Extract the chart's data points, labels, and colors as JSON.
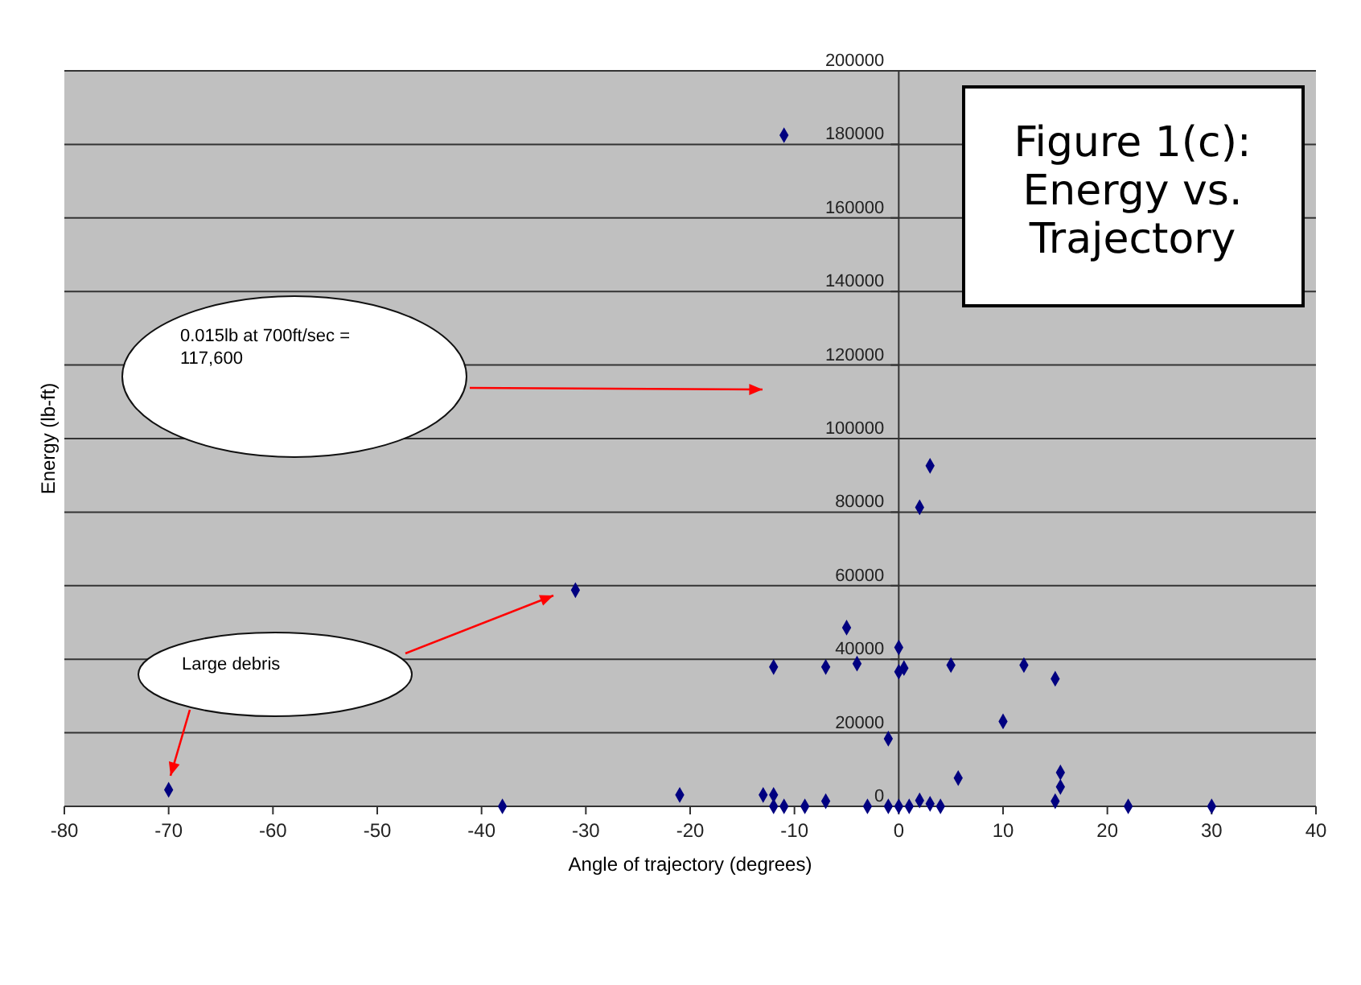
{
  "chart_data": {
    "type": "scatter",
    "title": "Figure 1(c): Energy vs. Trajectory",
    "xlabel": "Angle of trajectory (degrees)",
    "ylabel": "Energy (lb-ft)",
    "xlim": [
      -80,
      40
    ],
    "xticks": [
      -80,
      -70,
      -60,
      -50,
      -40,
      -30,
      -20,
      -10,
      0,
      10,
      20,
      30,
      40
    ],
    "ylim": [
      0,
      200000
    ],
    "yticks": [
      0,
      20000,
      40000,
      60000,
      80000,
      100000,
      120000,
      140000,
      160000,
      180000,
      200000
    ],
    "grid": "y",
    "marker": "diamond",
    "series": [
      {
        "color": "#000080",
        "x": [
          -70,
          -38,
          -31,
          -21,
          -13,
          -12,
          -12,
          -12,
          -11,
          -11,
          -9,
          -7,
          -7,
          -5,
          -4,
          -3,
          -1,
          -1,
          0,
          0,
          0,
          0.5,
          1,
          2,
          2,
          3,
          3,
          4,
          5,
          5.7,
          10,
          12,
          15,
          15,
          15.5,
          15.5,
          22,
          30
        ],
        "values": [
          4500,
          0,
          58800,
          3100,
          3100,
          3100,
          37900,
          0,
          0,
          182500,
          0,
          1400,
          37900,
          48600,
          38800,
          0,
          18400,
          0,
          43200,
          36600,
          0,
          37600,
          0,
          1600,
          81300,
          700,
          92600,
          0,
          38400,
          7700,
          23100,
          38400,
          34700,
          1400,
          9200,
          5300,
          0,
          0
        ]
      }
    ],
    "annotations": [
      "0.015lb at 700ft/sec = 117,600",
      "Large debris"
    ]
  }
}
